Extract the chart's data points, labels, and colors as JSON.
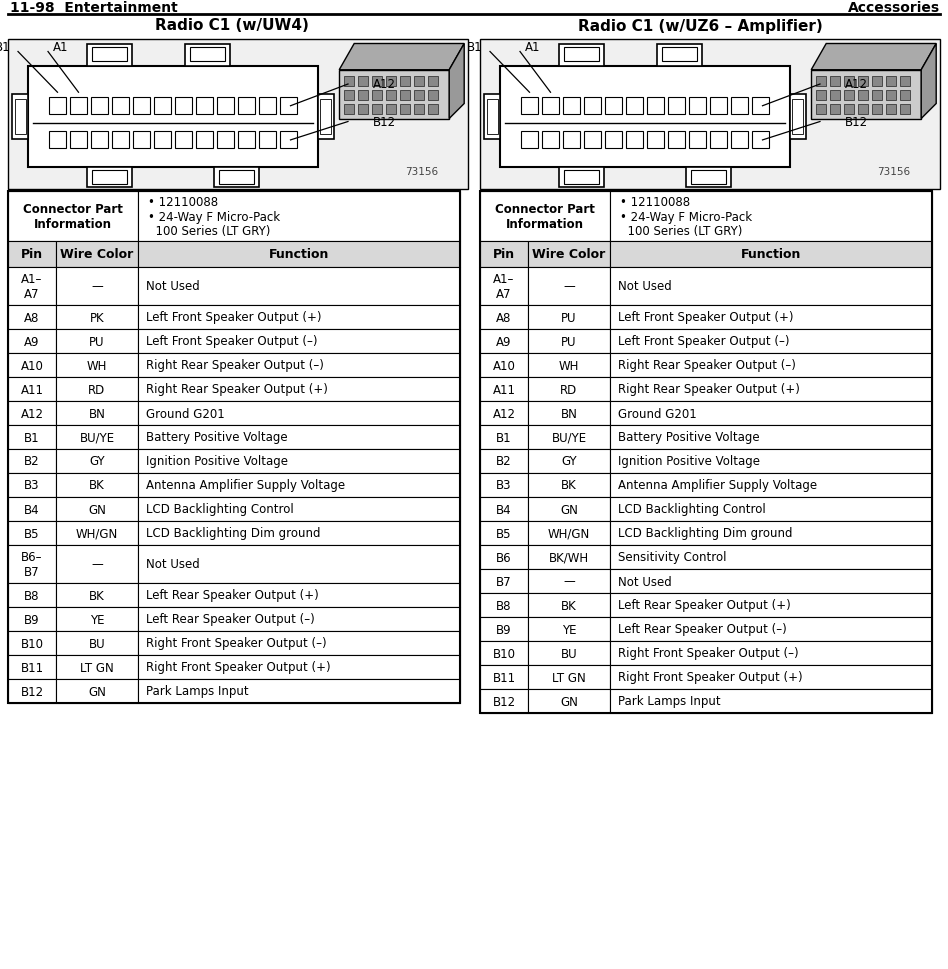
{
  "header_left": "11-98  Entertainment",
  "header_right": "Accessories",
  "title1": "Radio C1 (w/UW4)",
  "title2": "Radio C1 (w/UZ6 – Amplifier)",
  "connector_info_title": "Connector Part\nInformation",
  "bullet1": "• 12110088",
  "bullet2": "• 24-Way F Micro-Pack\n  100 Series (LT GRY)",
  "col_headers": [
    "Pin",
    "Wire Color",
    "Function"
  ],
  "table1_rows": [
    [
      "A1–\nA7",
      "—",
      "Not Used"
    ],
    [
      "A8",
      "PK",
      "Left Front Speaker Output (+)"
    ],
    [
      "A9",
      "PU",
      "Left Front Speaker Output (–)"
    ],
    [
      "A10",
      "WH",
      "Right Rear Speaker Output (–)"
    ],
    [
      "A11",
      "RD",
      "Right Rear Speaker Output (+)"
    ],
    [
      "A12",
      "BN",
      "Ground G201"
    ],
    [
      "B1",
      "BU/YE",
      "Battery Positive Voltage"
    ],
    [
      "B2",
      "GY",
      "Ignition Positive Voltage"
    ],
    [
      "B3",
      "BK",
      "Antenna Amplifier Supply Voltage"
    ],
    [
      "B4",
      "GN",
      "LCD Backlighting Control"
    ],
    [
      "B5",
      "WH/GN",
      "LCD Backlighting Dim ground"
    ],
    [
      "B6–\nB7",
      "—",
      "Not Used"
    ],
    [
      "B8",
      "BK",
      "Left Rear Speaker Output (+)"
    ],
    [
      "B9",
      "YE",
      "Left Rear Speaker Output (–)"
    ],
    [
      "B10",
      "BU",
      "Right Front Speaker Output (–)"
    ],
    [
      "B11",
      "LT GN",
      "Right Front Speaker Output (+)"
    ],
    [
      "B12",
      "GN",
      "Park Lamps Input"
    ]
  ],
  "table2_rows": [
    [
      "A1–\nA7",
      "—",
      "Not Used"
    ],
    [
      "A8",
      "PU",
      "Left Front Speaker Output (+)"
    ],
    [
      "A9",
      "PU",
      "Left Front Speaker Output (–)"
    ],
    [
      "A10",
      "WH",
      "Right Rear Speaker Output (–)"
    ],
    [
      "A11",
      "RD",
      "Right Rear Speaker Output (+)"
    ],
    [
      "A12",
      "BN",
      "Ground G201"
    ],
    [
      "B1",
      "BU/YE",
      "Battery Positive Voltage"
    ],
    [
      "B2",
      "GY",
      "Ignition Positive Voltage"
    ],
    [
      "B3",
      "BK",
      "Antenna Amplifier Supply Voltage"
    ],
    [
      "B4",
      "GN",
      "LCD Backlighting Control"
    ],
    [
      "B5",
      "WH/GN",
      "LCD Backlighting Dim ground"
    ],
    [
      "B6",
      "BK/WH",
      "Sensitivity Control"
    ],
    [
      "B7",
      "—",
      "Not Used"
    ],
    [
      "B8",
      "BK",
      "Left Rear Speaker Output (+)"
    ],
    [
      "B9",
      "YE",
      "Left Rear Speaker Output (–)"
    ],
    [
      "B10",
      "BU",
      "Right Front Speaker Output (–)"
    ],
    [
      "B11",
      "LT GN",
      "Right Front Speaker Output (+)"
    ],
    [
      "B12",
      "GN",
      "Park Lamps Input"
    ]
  ],
  "bg_color": "#ffffff",
  "diagram_bg": "#f0f0f0",
  "col_header_bg": "#d8d8d8",
  "border_color": "#000000",
  "diagram_number": "73156"
}
